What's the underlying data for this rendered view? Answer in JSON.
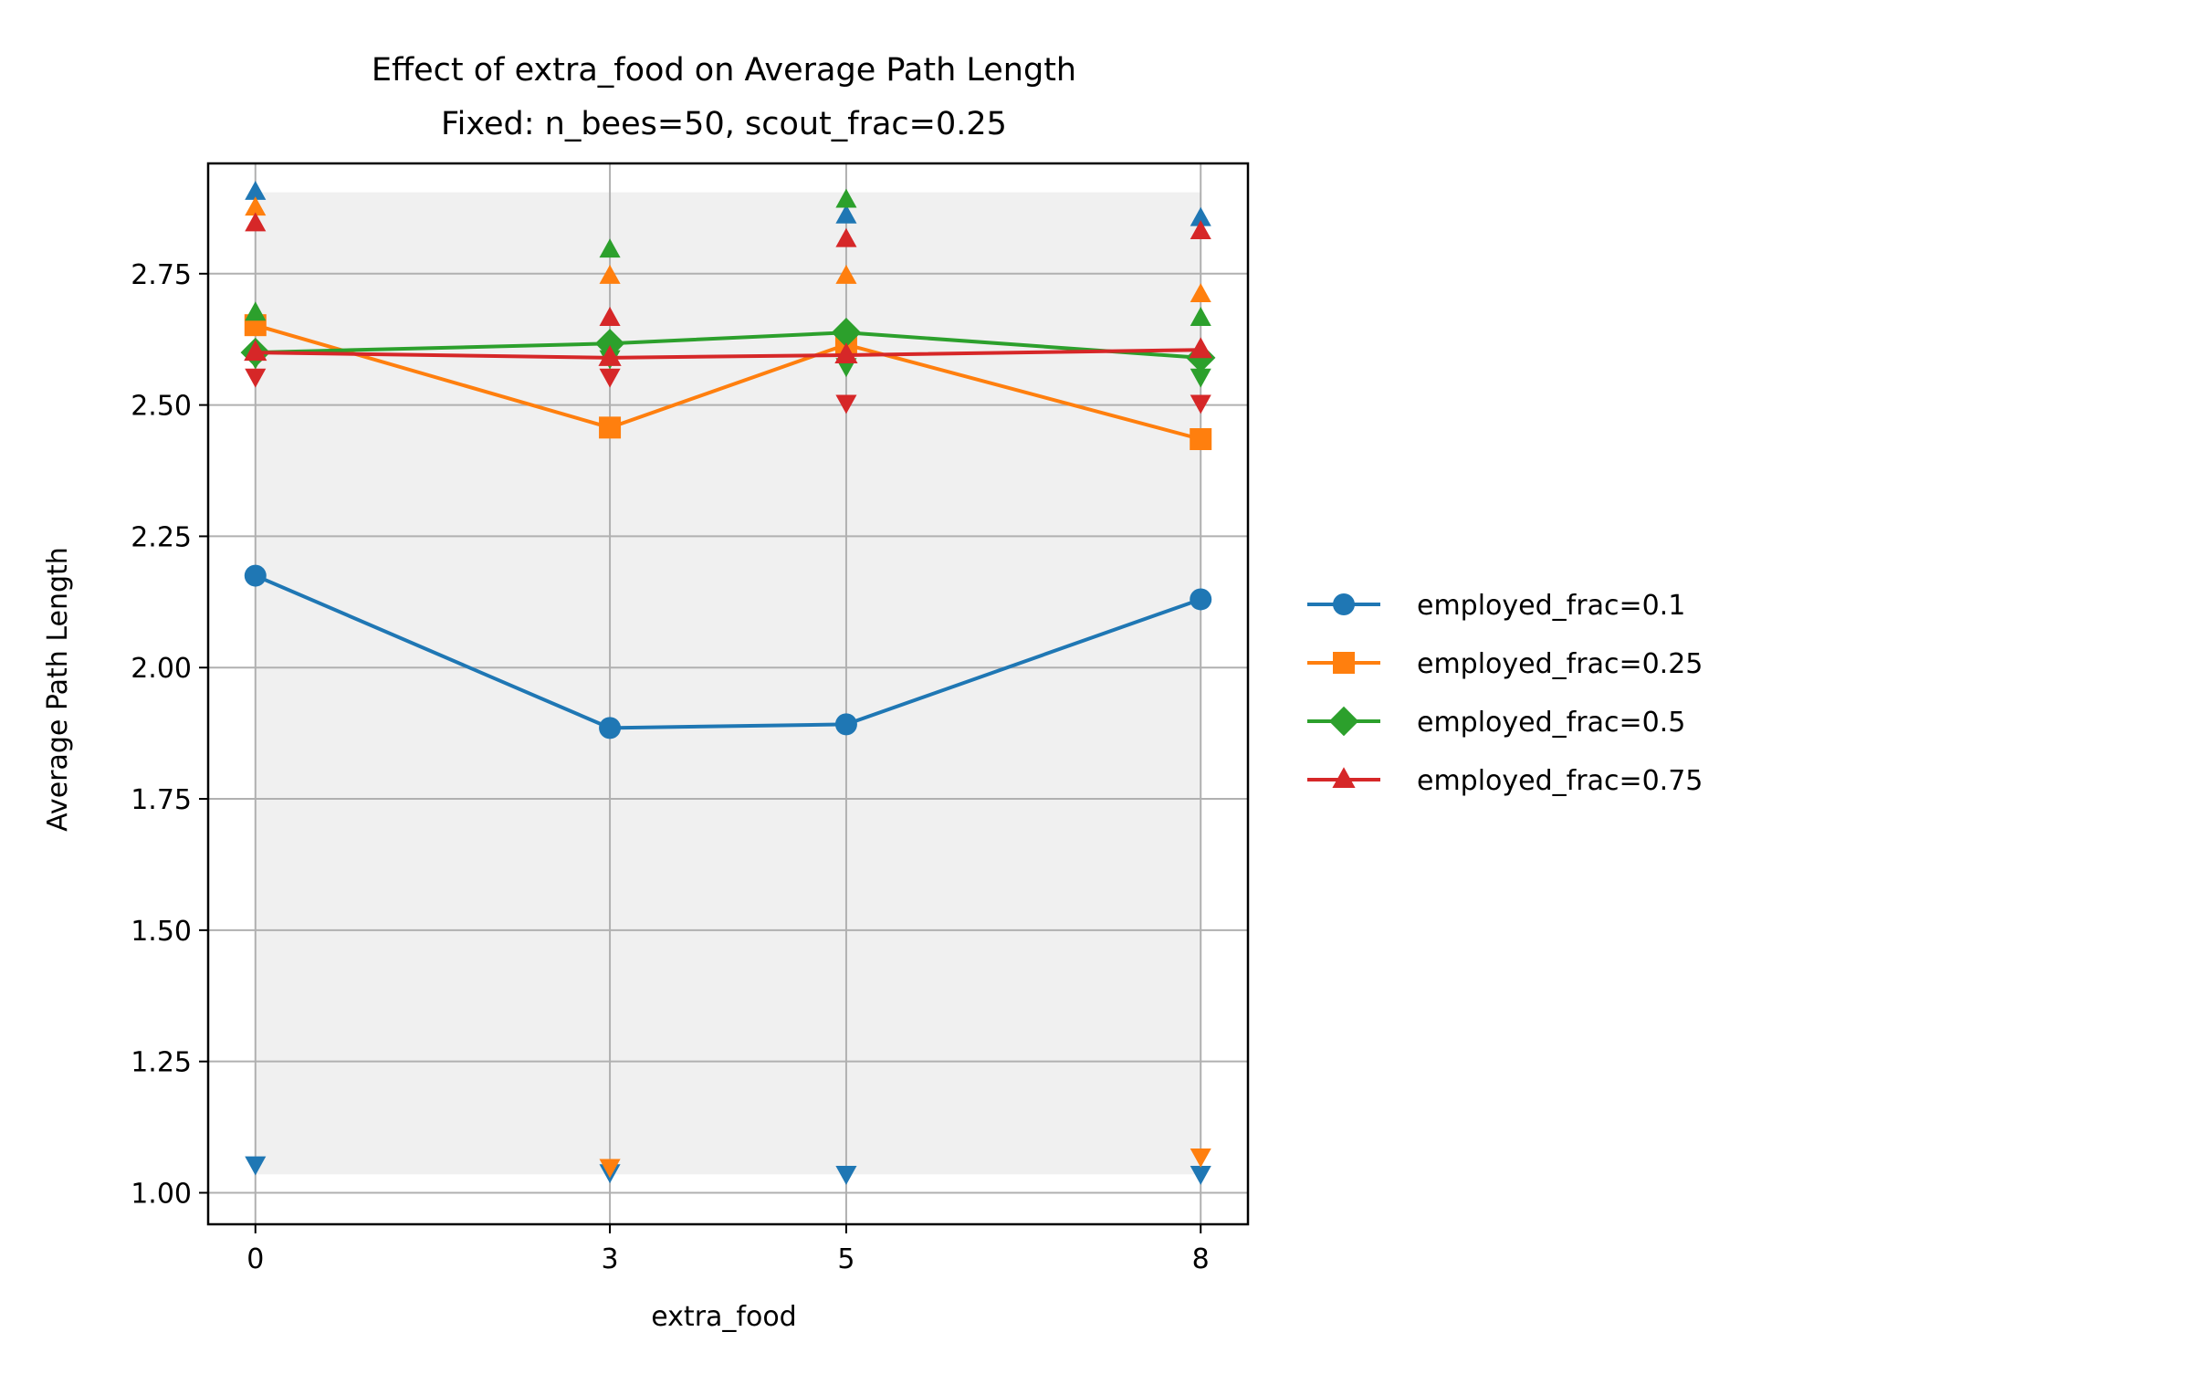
{
  "chart_data": {
    "type": "line",
    "title": "Effect of extra_food on Average Path Length",
    "subtitle": "Fixed: n_bees=50, scout_frac=0.25",
    "xlabel": "extra_food",
    "ylabel": "Average Path Length",
    "x": [
      0,
      3,
      5,
      8
    ],
    "xlim": [
      -0.4,
      8.4
    ],
    "ylim": [
      0.94,
      2.96
    ],
    "x_ticks": [
      "0",
      "3",
      "5",
      "8"
    ],
    "y_ticks": [
      "1.00",
      "1.25",
      "1.50",
      "1.75",
      "2.00",
      "2.25",
      "2.50",
      "2.75"
    ],
    "y_tick_values": [
      1.0,
      1.25,
      1.5,
      1.75,
      2.0,
      2.25,
      2.5,
      2.75
    ],
    "grid": true,
    "legend_position": "outside-right",
    "shaded_band": {
      "y_min": 1.035,
      "y_max": 2.905,
      "color": "#f0f0f0"
    },
    "series": [
      {
        "name": "employed_frac=0.1",
        "color": "#1f77b4",
        "marker": "circle",
        "values": [
          2.175,
          1.885,
          1.892,
          2.13
        ],
        "max": [
          2.905,
          null,
          2.86,
          2.855
        ],
        "min": [
          1.055,
          1.04,
          1.037,
          1.037
        ]
      },
      {
        "name": "employed_frac=0.25",
        "color": "#ff7f0e",
        "marker": "square",
        "values": [
          2.652,
          2.457,
          2.615,
          2.435
        ],
        "max": [
          2.875,
          2.745,
          2.745,
          2.71
        ],
        "min": [
          2.59,
          1.05,
          2.6,
          1.07
        ]
      },
      {
        "name": "employed_frac=0.5",
        "color": "#2ca02c",
        "marker": "diamond",
        "values": [
          2.6,
          2.617,
          2.638,
          2.59
        ],
        "max": [
          2.675,
          2.795,
          2.89,
          2.665
        ],
        "min": [
          2.59,
          2.59,
          2.575,
          2.555
        ]
      },
      {
        "name": "employed_frac=0.75",
        "color": "#d62728",
        "marker": "triangle",
        "values": [
          2.6,
          2.59,
          2.595,
          2.605
        ],
        "max": [
          2.845,
          2.665,
          2.815,
          2.83
        ],
        "min": [
          2.555,
          2.555,
          2.505,
          2.505
        ]
      }
    ]
  }
}
